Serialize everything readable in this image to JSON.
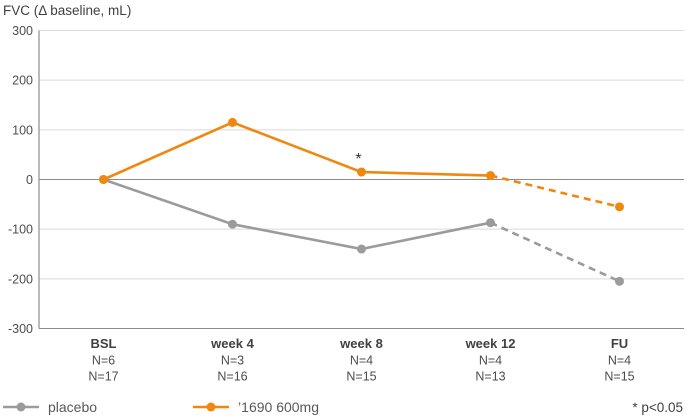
{
  "title": "FVC (Δ baseline, mL)",
  "footnote": "* p<0.05",
  "colors": {
    "placebo": "#9b9b9b",
    "treatment": "#f0870f",
    "grid_light": "#d9d9d9",
    "grid_dark": "#8c8c8c",
    "text_dark": "#404040",
    "text_mid": "#4d4d4d"
  },
  "legend": [
    {
      "name": "placebo",
      "color": "#9b9b9b"
    },
    {
      "name": "’1690 600mg",
      "color": "#f0870f"
    }
  ],
  "chart_data": {
    "type": "line",
    "title": "FVC (Δ baseline, mL)",
    "ylabel": "FVC (Δ baseline, mL)",
    "xlabel": "",
    "categories": [
      "BSL",
      "week 4",
      "week 8",
      "week 12",
      "FU"
    ],
    "category_sublabels": [
      [
        "N=6",
        "N=17"
      ],
      [
        "N=3",
        "N=16"
      ],
      [
        "N=4",
        "N=15"
      ],
      [
        "N=4",
        "N=13"
      ],
      [
        "N=4",
        "N=15"
      ]
    ],
    "series": [
      {
        "name": "placebo",
        "color": "#9b9b9b",
        "values": [
          0,
          -90,
          -140,
          -87,
          -205
        ],
        "dashed_from_index": 3
      },
      {
        "name": "’1690 600mg",
        "color": "#f0870f",
        "values": [
          0,
          115,
          15,
          8,
          -55
        ],
        "dashed_from_index": 3
      }
    ],
    "annotations": [
      {
        "text": "*",
        "series_index": 1,
        "point_index": 2
      }
    ],
    "ylim": [
      -300,
      300
    ],
    "yticks": [
      300,
      200,
      100,
      0,
      -100,
      -200,
      -300
    ],
    "grid": true,
    "zero_line": true,
    "legend_position": "bottom"
  }
}
